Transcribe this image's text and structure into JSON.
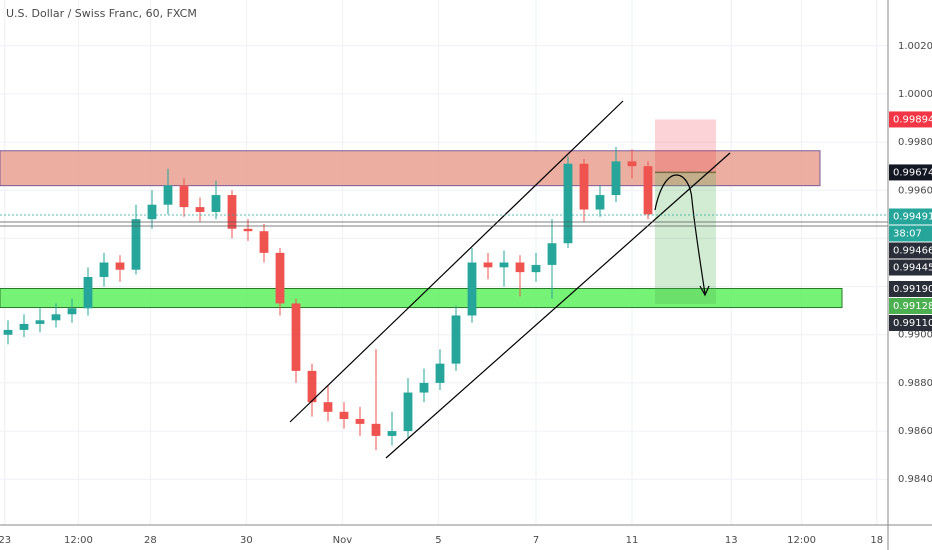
{
  "chart_data": {
    "type": "candlestick",
    "title": "U.S. Dollar / Swiss Franc, 60, FXCM",
    "up_color": "#26a69a",
    "down_color": "#ef5350",
    "grid": true,
    "xlim": [
      0,
      55.5
    ],
    "ylim": [
      0.9821,
      1.0039
    ],
    "xticks": [
      {
        "value": 0.3,
        "label": "23"
      },
      {
        "value": 4.9,
        "label": "12:00"
      },
      {
        "value": 9.4,
        "label": "28"
      },
      {
        "value": 15.4,
        "label": "30"
      },
      {
        "value": 21.4,
        "label": "Nov"
      },
      {
        "value": 27.4,
        "label": "5"
      },
      {
        "value": 33.5,
        "label": "7"
      },
      {
        "value": 39.5,
        "label": "11"
      },
      {
        "value": 45.7,
        "label": "13"
      },
      {
        "value": 50.1,
        "label": "12:00"
      },
      {
        "value": 54.8,
        "label": "18"
      }
    ],
    "yticks": [
      {
        "value": 0.984,
        "label": "0.98400"
      },
      {
        "value": 0.986,
        "label": "0.98600"
      },
      {
        "value": 0.988,
        "label": "0.98800"
      },
      {
        "value": 0.99,
        "label": "0.99000"
      },
      {
        "value": 0.992,
        "label": "0.99200"
      },
      {
        "value": 0.994,
        "label": "0.99400"
      },
      {
        "value": 0.996,
        "label": "0.99600"
      },
      {
        "value": 0.998,
        "label": "0.99800"
      },
      {
        "value": 1.0,
        "label": "1.00000"
      },
      {
        "value": 1.002,
        "label": "1.00200"
      }
    ],
    "x": [
      0.5,
      1.5,
      2.5,
      3.5,
      4.5,
      5.5,
      6.5,
      7.5,
      8.5,
      9.5,
      10.5,
      11.5,
      12.5,
      13.5,
      14.5,
      15.5,
      16.5,
      17.5,
      18.5,
      19.5,
      20.5,
      21.5,
      22.5,
      23.5,
      24.5,
      25.5,
      26.5,
      27.5,
      28.5,
      29.5,
      30.5,
      31.5,
      32.5,
      33.5,
      34.5,
      35.5,
      36.5,
      37.5,
      38.5,
      39.5,
      40.5
    ],
    "open": [
      0.99,
      0.9902,
      0.99045,
      0.9906,
      0.99085,
      0.9911,
      0.9924,
      0.993,
      0.9927,
      0.9948,
      0.9954,
      0.9962,
      0.9953,
      0.9951,
      0.9958,
      0.9944,
      0.9943,
      0.9934,
      0.9913,
      0.9885,
      0.9872,
      0.9868,
      0.9865,
      0.9863,
      0.9858,
      0.986,
      0.9876,
      0.988,
      0.9888,
      0.9908,
      0.993,
      0.9928,
      0.993,
      0.9926,
      0.9929,
      0.9938,
      0.9971,
      0.9952,
      0.9958,
      0.9972,
      0.997
    ],
    "high": [
      0.9906,
      0.99085,
      0.9911,
      0.9913,
      0.9915,
      0.9928,
      0.9934,
      0.9933,
      0.9954,
      0.996,
      0.9969,
      0.9965,
      0.9957,
      0.9964,
      0.996,
      0.9948,
      0.9946,
      0.9936,
      0.9915,
      0.9888,
      0.9879,
      0.9872,
      0.987,
      0.9894,
      0.9868,
      0.9882,
      0.9886,
      0.9894,
      0.9912,
      0.9936,
      0.9934,
      0.9935,
      0.9933,
      0.9934,
      0.9948,
      0.9974,
      0.9973,
      0.9962,
      0.9978,
      0.9977,
      0.9972
    ],
    "low": [
      0.9896,
      0.9899,
      0.9901,
      0.9903,
      0.9905,
      0.9908,
      0.992,
      0.9922,
      0.9925,
      0.9944,
      0.995,
      0.9949,
      0.9947,
      0.9948,
      0.994,
      0.9939,
      0.993,
      0.9908,
      0.988,
      0.9866,
      0.9864,
      0.9861,
      0.9858,
      0.9852,
      0.9854,
      0.9857,
      0.9872,
      0.9877,
      0.9885,
      0.9905,
      0.9923,
      0.992,
      0.9916,
      0.9922,
      0.9915,
      0.9936,
      0.9947,
      0.9949,
      0.9955,
      0.9965,
      0.9948
    ],
    "close": [
      0.9902,
      0.99045,
      0.9906,
      0.99085,
      0.9911,
      0.9924,
      0.993,
      0.9927,
      0.9948,
      0.9954,
      0.9962,
      0.9953,
      0.9951,
      0.9958,
      0.9944,
      0.9943,
      0.9934,
      0.9913,
      0.9885,
      0.9872,
      0.9868,
      0.9865,
      0.9863,
      0.9858,
      0.986,
      0.9876,
      0.988,
      0.9888,
      0.9908,
      0.993,
      0.9928,
      0.993,
      0.9926,
      0.9929,
      0.9938,
      0.9971,
      0.9952,
      0.9958,
      0.9972,
      0.997,
      0.995
    ],
    "zones": [
      {
        "top": 0.99764,
        "bottom": 0.99619,
        "color": "#e8a090",
        "border": "#7a5a9a"
      },
      {
        "top": 0.99192,
        "bottom": 0.99113,
        "color": "#5ef05e",
        "border": "#2a7a2a"
      }
    ],
    "position": {
      "stop": 0.99894,
      "entry": 0.99674,
      "target": 0.99128
    },
    "price_labels": [
      {
        "value": 0.99894,
        "label": "0.99894",
        "color": "#f23645"
      },
      {
        "value": 0.99674,
        "label": "0.99674",
        "color": "#131722"
      },
      {
        "value": 0.99491,
        "label": "0.99491",
        "color": "#26a69a"
      },
      {
        "label": "38:07",
        "color": "#26a69a"
      },
      {
        "value": 0.99466,
        "label": "0.99466",
        "color": "#2a2e39"
      },
      {
        "value": 0.99445,
        "label": "0.99445",
        "color": "#2a2e39"
      },
      {
        "value": 0.9919,
        "label": "0.99190",
        "color": "#2a2e39"
      },
      {
        "value": 0.99128,
        "label": "0.99128",
        "color": "#4caf50"
      },
      {
        "value": 0.9911,
        "label": "0.99110",
        "color": "#2a2e39"
      }
    ]
  }
}
